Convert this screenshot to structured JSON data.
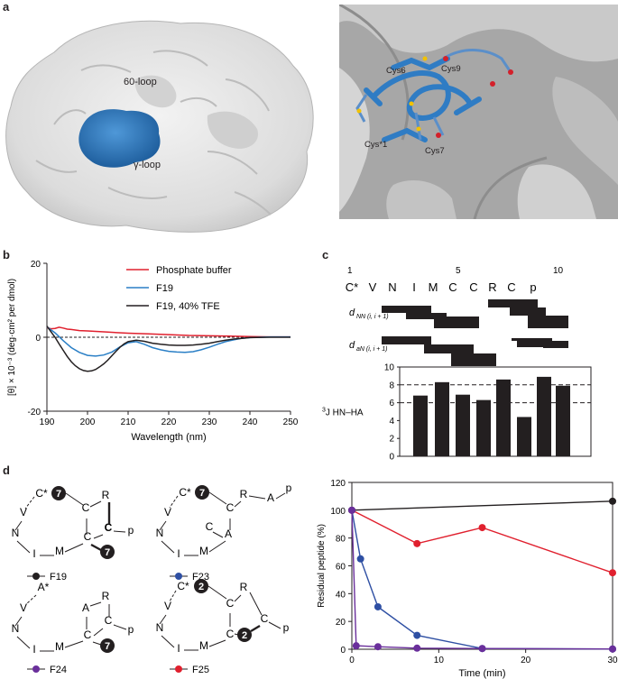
{
  "panels": {
    "a": "a",
    "b": "b",
    "c": "c",
    "d": "d"
  },
  "panel_a": {
    "left_labels": {
      "loop60": "60-loop",
      "gamma_loop": "γ-loop"
    },
    "right_labels": {
      "cys6": "Cys6",
      "cys9": "Cys9",
      "cys1": "Cys*1",
      "cys7": "Cys7"
    },
    "colors": {
      "surface": "#e3e3e3",
      "peptide": "#2f7cc4",
      "surface_dark": "#9a9a9a"
    }
  },
  "panel_b": {
    "legend": [
      "Phosphate buffer",
      "F19",
      "F19, 40% TFE"
    ]
  },
  "panel_c": {
    "sequence_numbers": [
      "1",
      "5",
      "10"
    ],
    "sequence": [
      "C*",
      "V",
      "N",
      "I",
      "M",
      "C",
      "C",
      "R",
      "C",
      "p"
    ],
    "dnn_label_main": "d",
    "dnn_label_sub": "NN (i, i + 1)",
    "dan_label_main": "d",
    "dan_label_sub": "aN (i, i + 1)",
    "j_label_sup": "3",
    "j_label": "J HN–HA"
  },
  "panel_d": {
    "structures": [
      {
        "name": "F19",
        "color": "#231f20"
      },
      {
        "name": "F23",
        "color": "#2e4fa3"
      },
      {
        "name": "F24",
        "color": "#6a2f9b"
      },
      {
        "name": "F25",
        "color": "#e0202e"
      }
    ],
    "atoms": {
      "c_star": "C*",
      "a_star": "A*",
      "v": "V",
      "n": "N",
      "i": "I",
      "m": "M",
      "c": "C",
      "r": "R",
      "a": "A",
      "p": "p",
      "seven": "7",
      "two": "2"
    }
  },
  "chart_data": [
    {
      "type": "line",
      "panel": "b",
      "xlabel": "Wavelength (nm)",
      "ylabel": "[θ] × 10⁻³ (deg·cm² per dmol)",
      "xlim": [
        190,
        250
      ],
      "ylim": [
        -20,
        20
      ],
      "xticks": [
        190,
        200,
        210,
        220,
        230,
        240,
        250
      ],
      "yticks": [
        -20,
        0,
        20
      ],
      "grid": false,
      "legend_position": "top-right",
      "series": [
        {
          "name": "Phosphate buffer",
          "color": "#e0202e",
          "x": [
            190,
            191,
            192,
            193,
            194,
            195,
            196,
            198,
            200,
            205,
            210,
            215,
            220,
            225,
            230,
            235,
            240,
            245,
            250
          ],
          "y": [
            2.6,
            2.3,
            2.4,
            2.7,
            2.5,
            2.2,
            2.1,
            1.8,
            1.7,
            1.4,
            1.1,
            0.9,
            0.7,
            0.5,
            0.4,
            0.3,
            0.2,
            0.1,
            0.1
          ]
        },
        {
          "name": "F19",
          "color": "#2a7fc6",
          "x": [
            190,
            192,
            194,
            196,
            198,
            200,
            202,
            204,
            206,
            208,
            210,
            212,
            214,
            216,
            218,
            220,
            222,
            224,
            226,
            228,
            230,
            232,
            234,
            236,
            238,
            240,
            245,
            250
          ],
          "y": [
            2.8,
            1.2,
            -0.9,
            -2.8,
            -4.1,
            -4.9,
            -5.1,
            -4.8,
            -4.0,
            -2.6,
            -1.5,
            -1.2,
            -1.9,
            -2.8,
            -3.4,
            -3.8,
            -4.0,
            -4.1,
            -3.9,
            -3.4,
            -2.7,
            -1.9,
            -1.2,
            -0.7,
            -0.3,
            -0.1,
            0.1,
            0.1
          ]
        },
        {
          "name": "F19, 40% TFE",
          "color": "#231f20",
          "x": [
            190,
            191,
            192,
            193,
            194,
            195,
            196,
            197,
            198,
            199,
            200,
            201,
            202,
            203,
            204,
            205,
            206,
            207,
            208,
            209,
            210,
            212,
            214,
            216,
            218,
            220,
            222,
            224,
            226,
            228,
            230,
            232,
            234,
            236,
            238,
            240,
            245,
            250
          ],
          "y": [
            3.0,
            1.5,
            0.0,
            -1.8,
            -3.5,
            -5.2,
            -6.6,
            -7.7,
            -8.5,
            -9.0,
            -9.2,
            -9.1,
            -8.7,
            -8.0,
            -7.2,
            -6.2,
            -5.0,
            -3.8,
            -2.7,
            -1.8,
            -1.2,
            -0.8,
            -1.1,
            -1.6,
            -1.9,
            -2.1,
            -2.2,
            -2.2,
            -2.1,
            -1.9,
            -1.6,
            -1.2,
            -0.8,
            -0.5,
            -0.3,
            -0.1,
            0.0,
            0.0
          ]
        }
      ]
    },
    {
      "type": "bar",
      "panel": "c",
      "ylabel": "3J HN–HA",
      "ylim": [
        0,
        10
      ],
      "yticks": [
        0,
        2,
        4,
        6,
        8,
        10
      ],
      "reference_lines": [
        6,
        8
      ],
      "categories": [
        "C*",
        "V",
        "N",
        "I",
        "M",
        "C",
        "C",
        "R",
        "C",
        "p"
      ],
      "values": [
        null,
        6.8,
        8.3,
        6.9,
        6.3,
        8.6,
        4.4,
        8.9,
        7.9,
        null
      ]
    },
    {
      "type": "line",
      "panel": "d",
      "xlabel": "Time (min)",
      "ylabel": "Residual peptide (%)",
      "xlim": [
        0,
        30
      ],
      "ylim": [
        0,
        120
      ],
      "xticks": [
        0,
        10,
        20,
        30
      ],
      "yticks": [
        0,
        20,
        40,
        60,
        80,
        100,
        120
      ],
      "series": [
        {
          "name": "F19",
          "color": "#231f20",
          "x": [
            0,
            30
          ],
          "y": [
            100,
            106.5
          ]
        },
        {
          "name": "F25",
          "color": "#e0202e",
          "x": [
            0,
            7.5,
            15,
            30
          ],
          "y": [
            100,
            76,
            87.5,
            55
          ]
        },
        {
          "name": "F23",
          "color": "#2e4fa3",
          "x": [
            0,
            1,
            3,
            7.5,
            15,
            30
          ],
          "y": [
            100,
            65,
            30.5,
            10,
            0.5,
            0.2
          ]
        },
        {
          "name": "F24",
          "color": "#6a2f9b",
          "x": [
            0,
            0.5,
            3,
            7.5,
            15,
            30
          ],
          "y": [
            100,
            2.5,
            1.8,
            0.8,
            0.5,
            0.2
          ]
        }
      ]
    }
  ]
}
